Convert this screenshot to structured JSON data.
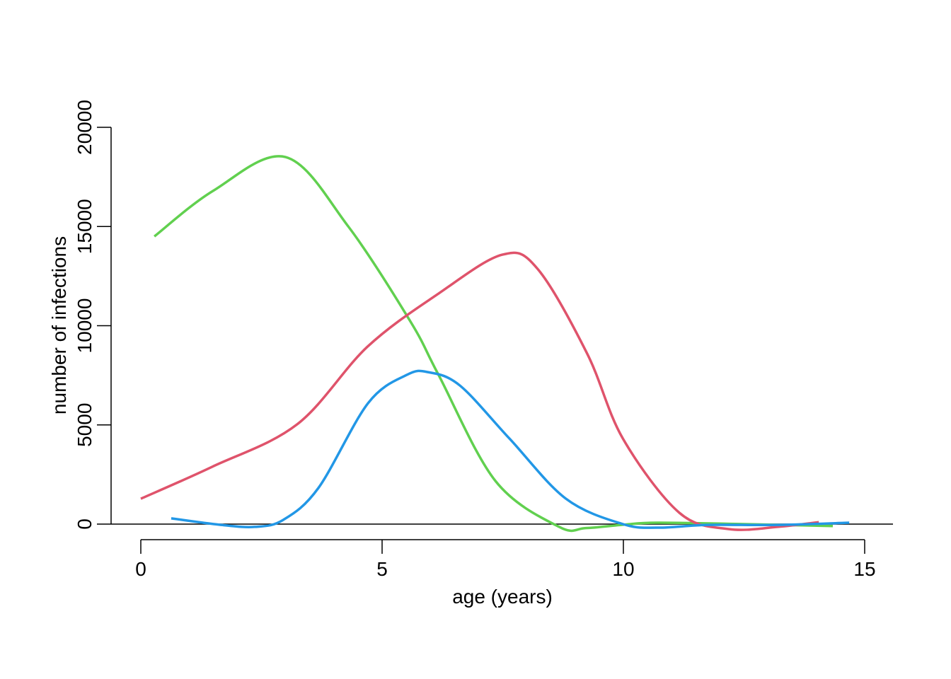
{
  "chart_data": {
    "type": "line",
    "title": "",
    "xlabel": "age (years)",
    "ylabel": "number of infections",
    "xlim": [
      0,
      15
    ],
    "ylim": [
      0,
      20000
    ],
    "xticks": [
      0,
      5,
      10,
      15
    ],
    "xtick_labels": [
      "0",
      "5",
      "10",
      "15"
    ],
    "yticks": [
      0,
      5000,
      10000,
      15000,
      20000
    ],
    "ytick_labels": [
      "0",
      "5000",
      "10000",
      "15000",
      "20000"
    ],
    "reference_line_y": 0,
    "grid": false,
    "legend": "none",
    "series": [
      {
        "name": "green",
        "color": "#61D04F",
        "x": [
          0.28,
          1.5,
          3.0,
          4.3,
          5.59,
          6.17,
          7.35,
          8.67,
          9.22,
          10.0,
          10.7,
          12.5,
          14.34
        ],
        "y": [
          14500,
          16800,
          18500,
          15000,
          10200,
          7520,
          2170,
          -140,
          -200,
          -30,
          70,
          0,
          -100
        ]
      },
      {
        "name": "red",
        "color": "#DF536B",
        "x": [
          0,
          1.48,
          3.24,
          4.7,
          6.17,
          7.49,
          8.22,
          9.25,
          9.99,
          11.16,
          12.18,
          13.2,
          14.05
        ],
        "y": [
          1280,
          2890,
          5030,
          8950,
          11620,
          13580,
          12870,
          8590,
          4310,
          570,
          -250,
          -140,
          100
        ]
      },
      {
        "name": "blue",
        "color": "#2297E6",
        "x": [
          0.63,
          1.63,
          2.36,
          2.95,
          3.68,
          4.71,
          5.51,
          5.95,
          6.61,
          7.64,
          8.81,
          9.99,
          10.72,
          11.74,
          13.2,
          14.68
        ],
        "y": [
          290,
          -30,
          -140,
          210,
          1820,
          6100,
          7520,
          7660,
          6990,
          4310,
          1280,
          0,
          -180,
          -40,
          -40,
          70
        ]
      }
    ]
  }
}
